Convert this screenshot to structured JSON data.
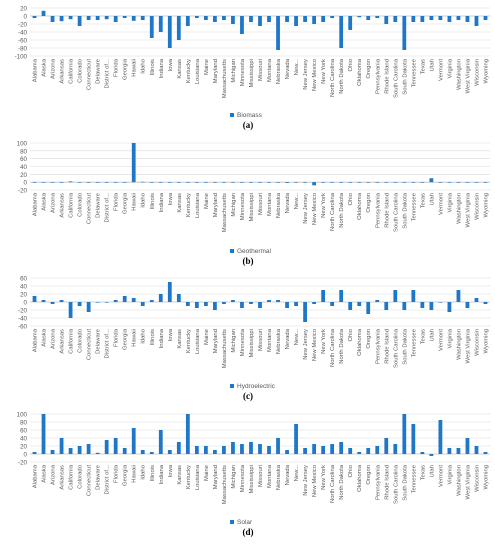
{
  "states": [
    "Alabama",
    "Alaska",
    "Arizona",
    "Arkansas",
    "California",
    "Colorado",
    "Connecticut",
    "Delaware",
    "District of...",
    "Florida",
    "Georgia",
    "Hawaii",
    "Idaho",
    "Illinois",
    "Indiana",
    "Iowa",
    "Kansas",
    "Kentucky",
    "Louisiana",
    "Maine",
    "Maryland",
    "Massachusetts",
    "Michigan",
    "Minnesota",
    "Mississippi",
    "Missouri",
    "Montana",
    "Nebraska",
    "Nevada",
    "New...",
    "New Jersey",
    "New Mexico",
    "New York",
    "North Carolina",
    "North Dakota",
    "Ohio",
    "Oklahoma",
    "Oregon",
    "Pennsylvania",
    "Rhode Island",
    "South Carolina",
    "South Dakota",
    "Tennessee",
    "Texas",
    "Utah",
    "Vermont",
    "Virginia",
    "Washington",
    "West Virginia",
    "Wisconsin",
    "Wyoming"
  ],
  "colors": {
    "bar": "#1f77c8",
    "grid": "#d9d9d9",
    "axis": "#bfbfbf"
  },
  "chart_data": [
    {
      "type": "bar",
      "panel": "(a)",
      "legend": "Biomass",
      "ylim": [
        -100,
        20
      ],
      "yticks": [
        20,
        0,
        -20,
        -40,
        -60,
        -80,
        -100
      ],
      "values": [
        -5,
        13,
        -15,
        -13,
        -8,
        -25,
        -10,
        -10,
        -8,
        -15,
        -5,
        -12,
        -10,
        -55,
        -40,
        -80,
        -60,
        -25,
        -5,
        -10,
        -15,
        -10,
        -20,
        -45,
        -15,
        -25,
        -15,
        -85,
        -15,
        -25,
        -15,
        -20,
        -15,
        -5,
        -80,
        -35,
        -3,
        -10,
        -5,
        -20,
        -15,
        -85,
        -15,
        -15,
        -10,
        -10,
        -15,
        -10,
        -15,
        -25,
        -10
      ]
    },
    {
      "type": "bar",
      "panel": "(b)",
      "legend": "Geothermal",
      "ylim": [
        -20,
        100
      ],
      "yticks": [
        100,
        80,
        60,
        40,
        20,
        0,
        -20
      ],
      "values": [
        0,
        0,
        0,
        0,
        2,
        0,
        0,
        0,
        0,
        0,
        0,
        100,
        1,
        0,
        0,
        0,
        0,
        0,
        0,
        0,
        0,
        0,
        0,
        0,
        0,
        0,
        0,
        0,
        -2,
        0,
        0,
        -8,
        0,
        0,
        0,
        0,
        0,
        0,
        0,
        0,
        0,
        0,
        0,
        0,
        10,
        0,
        0,
        0,
        0,
        0,
        0
      ]
    },
    {
      "type": "bar",
      "panel": "(c)",
      "legend": "Hydroelectric",
      "ylim": [
        -60,
        60
      ],
      "yticks": [
        60,
        40,
        20,
        0,
        -20,
        -40,
        -60
      ],
      "values": [
        15,
        5,
        -5,
        5,
        -40,
        -10,
        -25,
        0,
        0,
        5,
        15,
        10,
        -10,
        5,
        20,
        50,
        20,
        -10,
        -15,
        -10,
        -20,
        -5,
        5,
        -15,
        -5,
        -15,
        5,
        5,
        -15,
        -10,
        -50,
        -5,
        30,
        -10,
        30,
        -20,
        -10,
        -30,
        5,
        -20,
        30,
        -20,
        30,
        -15,
        -20,
        0,
        -25,
        30,
        -15,
        10,
        -5
      ]
    },
    {
      "type": "bar",
      "panel": "(d)",
      "legend": "Solar",
      "ylim": [
        -20,
        100
      ],
      "yticks": [
        100,
        80,
        60,
        40,
        20,
        0,
        -20
      ],
      "values": [
        5,
        100,
        10,
        40,
        15,
        20,
        25,
        3,
        35,
        40,
        15,
        65,
        10,
        5,
        60,
        10,
        30,
        100,
        20,
        20,
        10,
        20,
        30,
        25,
        30,
        25,
        20,
        40,
        10,
        75,
        15,
        25,
        20,
        25,
        30,
        15,
        5,
        15,
        20,
        40,
        25,
        100,
        75,
        5,
        -5,
        85,
        15,
        15,
        40,
        20,
        5
      ]
    }
  ]
}
